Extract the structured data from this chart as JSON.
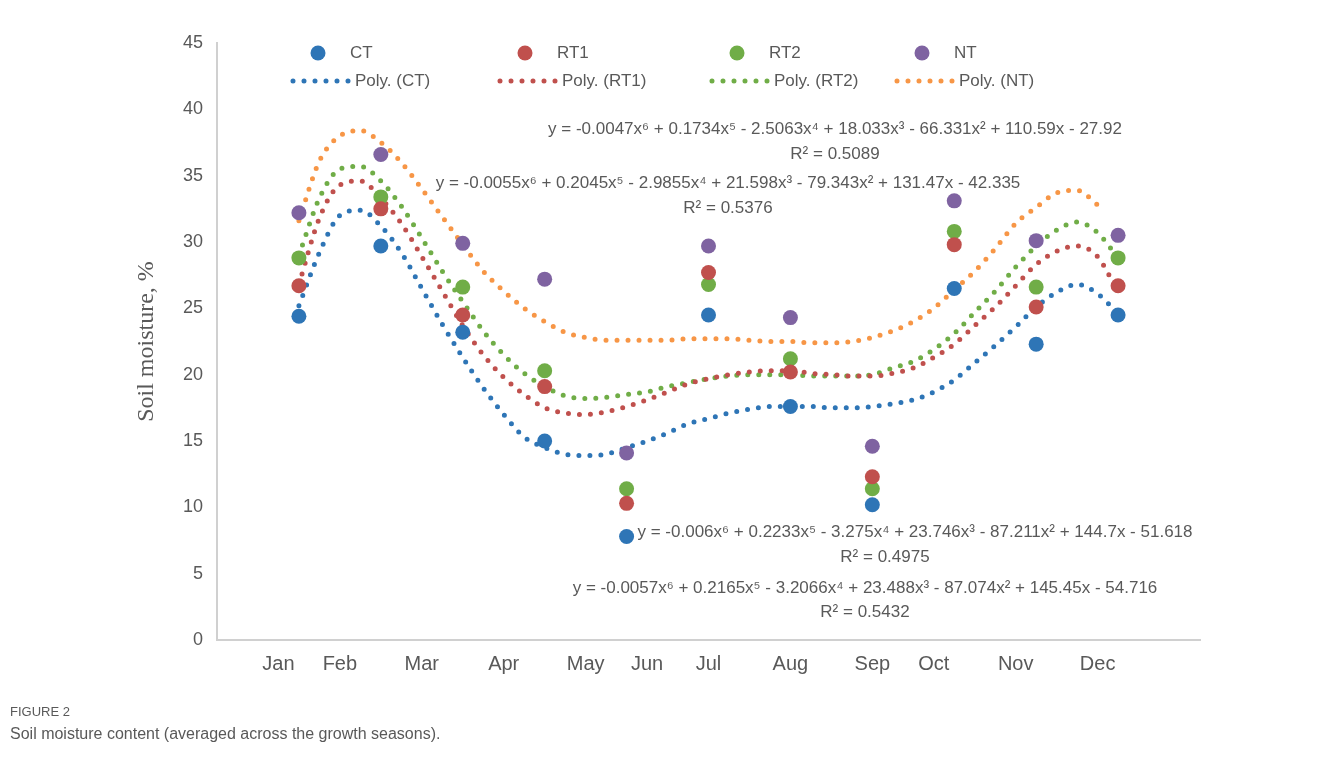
{
  "chart_data": {
    "type": "scatter",
    "ylabel": "Soil moisture, %",
    "ylim": [
      0,
      45
    ],
    "categories": [
      null,
      null,
      null,
      "Jan",
      null,
      null,
      "Feb",
      null,
      null,
      null,
      "Mar",
      null,
      null,
      null,
      "Apr",
      null,
      null,
      null,
      "May",
      null,
      null,
      "Jun",
      null,
      null,
      "Jul",
      null,
      null,
      null,
      "Aug",
      null,
      null,
      null,
      "Sep",
      null,
      null,
      "Oct",
      null,
      null,
      null,
      "Nov",
      null,
      null,
      null,
      "Dec",
      null,
      null,
      null,
      null,
      null
    ],
    "yticks": [
      0,
      5,
      10,
      15,
      20,
      25,
      30,
      35,
      40,
      45
    ],
    "grid": false,
    "legend": "top",
    "marker": "circle",
    "series": [
      {
        "name": "CT",
        "color": "#2e75b6",
        "values": [
          null,
          null,
          null,
          null,
          24.4,
          null,
          null,
          null,
          29.7,
          null,
          null,
          null,
          23.2,
          null,
          null,
          null,
          15.0,
          null,
          null,
          null,
          7.8,
          null,
          null,
          null,
          24.5,
          null,
          null,
          null,
          17.6,
          null,
          null,
          null,
          10.2,
          null,
          null,
          null,
          26.5,
          null,
          null,
          null,
          22.3,
          null,
          null,
          null,
          24.5,
          null,
          null,
          null,
          null
        ]
      },
      {
        "name": "RT1",
        "color": "#c0504d",
        "values": [
          null,
          null,
          null,
          null,
          26.7,
          null,
          null,
          null,
          32.5,
          null,
          null,
          null,
          24.5,
          null,
          null,
          null,
          19.1,
          null,
          null,
          null,
          10.3,
          null,
          null,
          null,
          27.7,
          null,
          null,
          null,
          20.2,
          null,
          null,
          null,
          12.3,
          null,
          null,
          null,
          29.8,
          null,
          null,
          null,
          25.1,
          null,
          null,
          null,
          26.7,
          null,
          null,
          null,
          null
        ]
      },
      {
        "name": "RT2",
        "color": "#70ad47",
        "values": [
          null,
          null,
          null,
          null,
          28.8,
          null,
          null,
          null,
          33.4,
          null,
          null,
          null,
          26.6,
          null,
          null,
          null,
          20.3,
          null,
          null,
          null,
          11.4,
          null,
          null,
          null,
          26.8,
          null,
          null,
          null,
          21.2,
          null,
          null,
          null,
          11.4,
          null,
          null,
          null,
          30.8,
          null,
          null,
          null,
          26.6,
          null,
          null,
          null,
          28.8,
          null,
          null,
          null,
          null
        ]
      },
      {
        "name": "NT",
        "color": "#7f63a1",
        "values": [
          null,
          null,
          null,
          null,
          32.2,
          null,
          null,
          null,
          36.6,
          null,
          null,
          null,
          29.9,
          null,
          null,
          null,
          27.2,
          null,
          null,
          null,
          14.1,
          null,
          null,
          null,
          29.7,
          null,
          null,
          null,
          24.3,
          null,
          null,
          null,
          14.6,
          null,
          null,
          null,
          33.1,
          null,
          null,
          null,
          30.1,
          null,
          null,
          null,
          30.5,
          null,
          null,
          null,
          null
        ]
      },
      {
        "name": "Poly. (CT)",
        "type": "line",
        "marker": "none",
        "line_style": "dotted",
        "color": "#2e75b6",
        "values": [
          null,
          null,
          null,
          null,
          25.2,
          29.2,
          32.0,
          32.4,
          31.2,
          29.2,
          26.5,
          23.8,
          21.3,
          19.0,
          17.0,
          15.3,
          14.5,
          14.0,
          13.9,
          14.0,
          14.5,
          15.0,
          15.6,
          16.3,
          16.7,
          17.1,
          17.4,
          17.6,
          17.6,
          17.6,
          17.5,
          17.5,
          17.6,
          17.8,
          18.1,
          18.7,
          19.6,
          20.9,
          22.2,
          23.6,
          25.1,
          26.2,
          26.8,
          26.1,
          24.6,
          null,
          null,
          null,
          null
        ]
      },
      {
        "name": "Poly. (RT1)",
        "type": "line",
        "marker": "none",
        "line_style": "dotted",
        "color": "#c0504d",
        "values": [
          null,
          null,
          null,
          null,
          26.8,
          31.8,
          34.3,
          34.6,
          33.3,
          31.4,
          28.9,
          26.3,
          23.7,
          21.5,
          19.8,
          18.5,
          17.5,
          17.1,
          17.0,
          17.2,
          17.6,
          18.1,
          18.7,
          19.3,
          19.7,
          20.0,
          20.2,
          20.3,
          20.3,
          20.1,
          20.0,
          19.9,
          19.9,
          20.1,
          20.5,
          21.3,
          22.3,
          23.7,
          25.1,
          26.7,
          28.3,
          29.3,
          29.7,
          28.9,
          26.2,
          null,
          null,
          null,
          null
        ]
      },
      {
        "name": "Poly. (RT2)",
        "type": "line",
        "marker": "none",
        "line_style": "dotted",
        "color": "#70ad47",
        "values": [
          null,
          null,
          null,
          null,
          29.0,
          33.3,
          35.5,
          35.7,
          34.6,
          32.7,
          30.3,
          27.8,
          25.5,
          23.3,
          21.5,
          20.1,
          19.1,
          18.4,
          18.2,
          18.3,
          18.5,
          18.7,
          19.1,
          19.4,
          19.7,
          19.9,
          20.0,
          20.0,
          20.0,
          19.9,
          19.9,
          19.9,
          20.0,
          20.5,
          21.0,
          21.9,
          23.1,
          24.7,
          26.3,
          28.1,
          29.7,
          30.9,
          31.5,
          30.7,
          28.8,
          null,
          null,
          null,
          null
        ]
      },
      {
        "name": "Poly. (NT)",
        "type": "line",
        "marker": "none",
        "line_style": "dotted",
        "color": "#f79646",
        "values": [
          null,
          null,
          null,
          null,
          31.6,
          36.1,
          38.0,
          38.4,
          37.5,
          36.0,
          34.0,
          31.9,
          29.8,
          27.8,
          26.3,
          25.0,
          24.0,
          23.2,
          22.8,
          22.6,
          22.6,
          22.6,
          22.6,
          22.7,
          22.7,
          22.7,
          22.6,
          22.5,
          22.5,
          22.4,
          22.4,
          22.5,
          22.8,
          23.3,
          24.0,
          25.0,
          26.4,
          27.8,
          29.5,
          31.4,
          32.6,
          33.7,
          33.9,
          32.8,
          null,
          null,
          null,
          null,
          null
        ]
      }
    ],
    "annotations": [
      "y = -0.0047x⁶ + 0.1734x⁵ - 2.5063x⁴ + 18.033x³ - 66.331x² + 110.59x - 27.92",
      "R² = 0.5089",
      "y = -0.0055x⁶ + 0.2045x⁵ - 2.9855x⁴ + 21.598x³ - 79.343x² + 131.47x - 42.335",
      "R² = 0.5376",
      "y = -0.006x⁶ + 0.2233x⁵ - 3.275x⁴ + 23.746x³ - 87.211x² + 144.7x - 51.618",
      "R² = 0.4975",
      "y = -0.0057x⁶ + 0.2165x⁵ - 3.2066x⁴ + 23.488x³ - 87.074x² + 145.45x - 54.716",
      "R² = 0.5432",
      "FIGURE 2",
      "Soil moisture content (averaged across the growth seasons)."
    ]
  }
}
